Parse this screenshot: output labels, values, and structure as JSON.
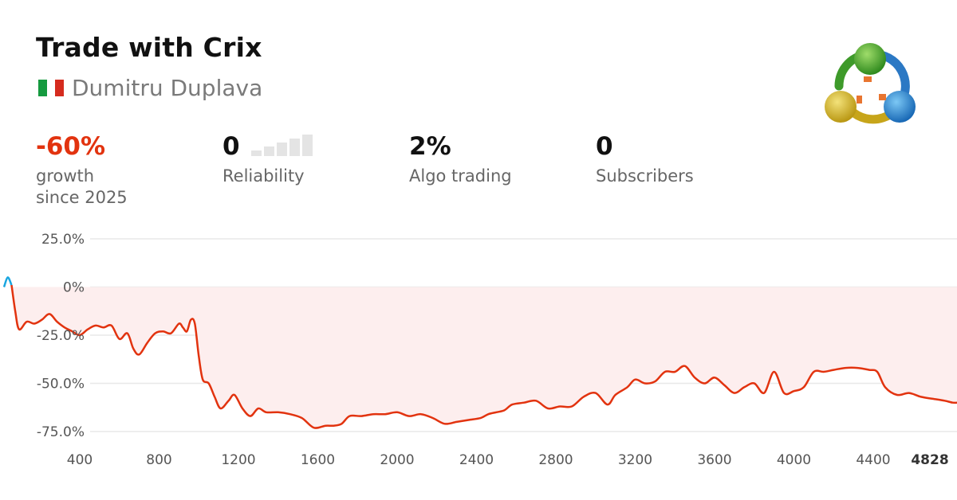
{
  "header": {
    "title": "Trade with Crix",
    "author": "Dumitru Duplava",
    "flag": {
      "name": "italy-flag",
      "colors": [
        "#159a3f",
        "#ffffff",
        "#d52b1e"
      ]
    },
    "logo_icon": "metatrader-logo-icon"
  },
  "stats": {
    "growth": {
      "value": "-60%",
      "label_line1": "growth",
      "label_line2": "since 2025"
    },
    "reliability": {
      "value": "0",
      "label": "Reliability",
      "bars_filled": 0,
      "bars_total": 5
    },
    "algo": {
      "value": "2%",
      "label": "Algo trading"
    },
    "subscribers": {
      "value": "0",
      "label": "Subscribers"
    }
  },
  "colors": {
    "negative": "#e2330f",
    "positive_line": "#1aa6e0",
    "area_fill": "#fdeeee",
    "grid": "#e8e8e8"
  },
  "chart_data": {
    "type": "line",
    "x_ticks": [
      "400",
      "800",
      "1200",
      "1600",
      "2000",
      "2400",
      "2800",
      "3200",
      "3600",
      "4000",
      "4400",
      "4828"
    ],
    "y_ticks": [
      "25.0%",
      "0%",
      "-25.0%",
      "-50.0%",
      "-75.0%"
    ],
    "y_tick_values": [
      25,
      0,
      -25,
      -50,
      -75
    ],
    "xlim": [
      0,
      4828
    ],
    "ylim": [
      -75,
      25
    ],
    "grid": true,
    "series": [
      {
        "points": [
          [
            0,
            0
          ],
          [
            20,
            5
          ],
          [
            40,
            1
          ],
          [
            60,
            -13
          ],
          [
            80,
            -22
          ],
          [
            120,
            -18
          ],
          [
            160,
            -19
          ],
          [
            200,
            -17
          ],
          [
            240,
            -14
          ],
          [
            280,
            -18
          ],
          [
            320,
            -21
          ],
          [
            360,
            -23
          ],
          [
            400,
            -25
          ],
          [
            440,
            -22
          ],
          [
            480,
            -20
          ],
          [
            520,
            -21
          ],
          [
            560,
            -20
          ],
          [
            600,
            -27
          ],
          [
            640,
            -24
          ],
          [
            670,
            -32
          ],
          [
            700,
            -35
          ],
          [
            740,
            -29
          ],
          [
            780,
            -24
          ],
          [
            820,
            -23
          ],
          [
            860,
            -24
          ],
          [
            900,
            -19
          ],
          [
            920,
            -21
          ],
          [
            940,
            -23
          ],
          [
            960,
            -17
          ],
          [
            980,
            -19
          ],
          [
            1000,
            -36
          ],
          [
            1020,
            -48
          ],
          [
            1050,
            -50
          ],
          [
            1080,
            -57
          ],
          [
            1110,
            -63
          ],
          [
            1150,
            -59
          ],
          [
            1180,
            -56
          ],
          [
            1220,
            -63
          ],
          [
            1260,
            -67
          ],
          [
            1300,
            -63
          ],
          [
            1340,
            -65
          ],
          [
            1400,
            -65
          ],
          [
            1460,
            -66
          ],
          [
            1520,
            -68
          ],
          [
            1580,
            -73
          ],
          [
            1640,
            -72
          ],
          [
            1680,
            -72
          ],
          [
            1720,
            -71
          ],
          [
            1760,
            -67
          ],
          [
            1820,
            -67
          ],
          [
            1880,
            -66
          ],
          [
            1940,
            -66
          ],
          [
            2000,
            -65
          ],
          [
            2060,
            -67
          ],
          [
            2120,
            -66
          ],
          [
            2180,
            -68
          ],
          [
            2240,
            -71
          ],
          [
            2300,
            -70
          ],
          [
            2360,
            -69
          ],
          [
            2420,
            -68
          ],
          [
            2460,
            -66
          ],
          [
            2500,
            -65
          ],
          [
            2540,
            -64
          ],
          [
            2580,
            -61
          ],
          [
            2640,
            -60
          ],
          [
            2700,
            -59
          ],
          [
            2760,
            -63
          ],
          [
            2820,
            -62
          ],
          [
            2880,
            -62
          ],
          [
            2940,
            -57
          ],
          [
            3000,
            -55
          ],
          [
            3060,
            -61
          ],
          [
            3100,
            -56
          ],
          [
            3160,
            -52
          ],
          [
            3200,
            -48
          ],
          [
            3250,
            -50
          ],
          [
            3300,
            -49
          ],
          [
            3350,
            -44
          ],
          [
            3400,
            -44
          ],
          [
            3450,
            -41
          ],
          [
            3500,
            -47
          ],
          [
            3550,
            -50
          ],
          [
            3600,
            -47
          ],
          [
            3650,
            -51
          ],
          [
            3700,
            -55
          ],
          [
            3750,
            -52
          ],
          [
            3800,
            -50
          ],
          [
            3850,
            -55
          ],
          [
            3900,
            -44
          ],
          [
            3950,
            -55
          ],
          [
            4000,
            -54
          ],
          [
            4050,
            -52
          ],
          [
            4100,
            -44
          ],
          [
            4150,
            -44
          ],
          [
            4200,
            -43
          ],
          [
            4260,
            -42
          ],
          [
            4320,
            -42
          ],
          [
            4380,
            -43
          ],
          [
            4420,
            -44
          ],
          [
            4460,
            -52
          ],
          [
            4520,
            -56
          ],
          [
            4580,
            -55
          ],
          [
            4640,
            -57
          ],
          [
            4700,
            -58
          ],
          [
            4760,
            -59
          ],
          [
            4800,
            -60
          ],
          [
            4828,
            -60
          ]
        ]
      }
    ]
  }
}
